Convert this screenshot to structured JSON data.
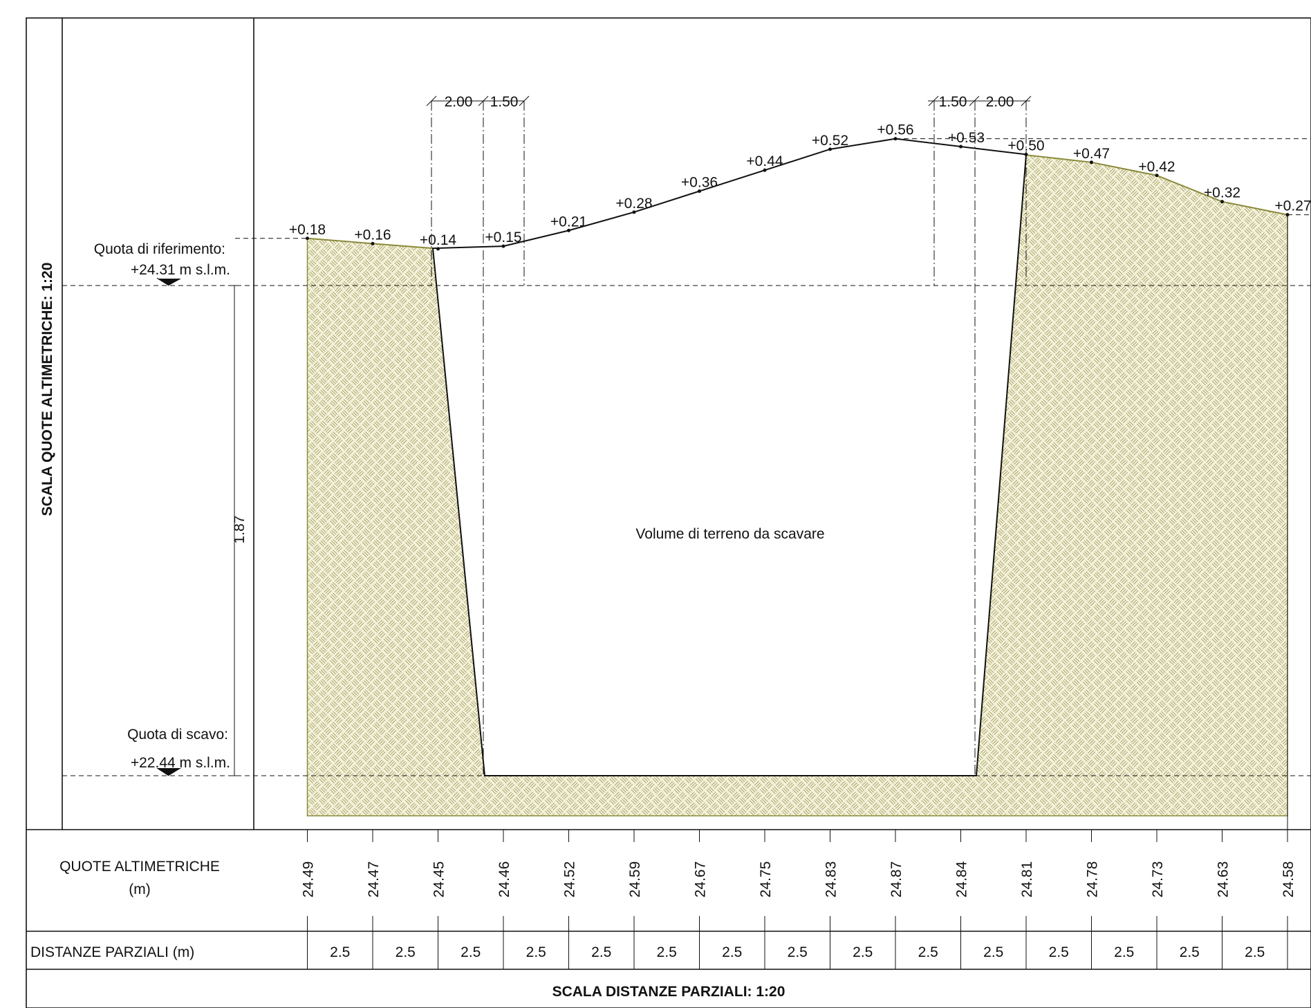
{
  "vertical_scale_label": "SCALA QUOTE ALTIMETRICHE: 1:20",
  "horizontal_scale_label": "SCALA DISTANZE PARZIALI: 1:20",
  "reference_level": {
    "label": "Quota di riferimento:",
    "value": "+24.31 m s.l.m."
  },
  "excavation_level": {
    "label": "Quota di scavo:",
    "value": "+22.44 m s.l.m."
  },
  "depth_dimension": "1.87",
  "volume_label": "Volume di terreno da scavare",
  "left_dims": [
    "2.00",
    "1.50"
  ],
  "right_dims": [
    "1.50",
    "2.00"
  ],
  "table": {
    "row1_label_line1": "QUOTE ALTIMETRICHE",
    "row1_label_line2": "(m)",
    "row2_label": "DISTANZE PARZIALI (m)"
  },
  "colors": {
    "terrain_fill": "#f4f1da",
    "terrain_pattern": "#a6a46a",
    "terrain_edge": "#8b8a3a",
    "line": "#111111"
  },
  "chart_data": {
    "type": "line",
    "reference_elevation": 24.31,
    "excavation_elevation": 22.44,
    "elevations": [
      "24.49",
      "24.47",
      "24.45",
      "24.46",
      "24.52",
      "24.59",
      "24.67",
      "24.75",
      "24.83",
      "24.87",
      "24.84",
      "24.81",
      "24.78",
      "24.73",
      "24.63",
      "24.58"
    ],
    "relative_labels": [
      "+0.18",
      "+0.16",
      "+0.14",
      "+0.15",
      "+0.21",
      "+0.28",
      "+0.36",
      "+0.44",
      "+0.52",
      "+0.56",
      "+0.53",
      "+0.50",
      "+0.47",
      "+0.42",
      "+0.32",
      "+0.27"
    ],
    "partial_distances": [
      "2.5",
      "2.5",
      "2.5",
      "2.5",
      "2.5",
      "2.5",
      "2.5",
      "2.5",
      "2.5",
      "2.5",
      "2.5",
      "2.5",
      "2.5",
      "2.5",
      "2.5"
    ]
  }
}
